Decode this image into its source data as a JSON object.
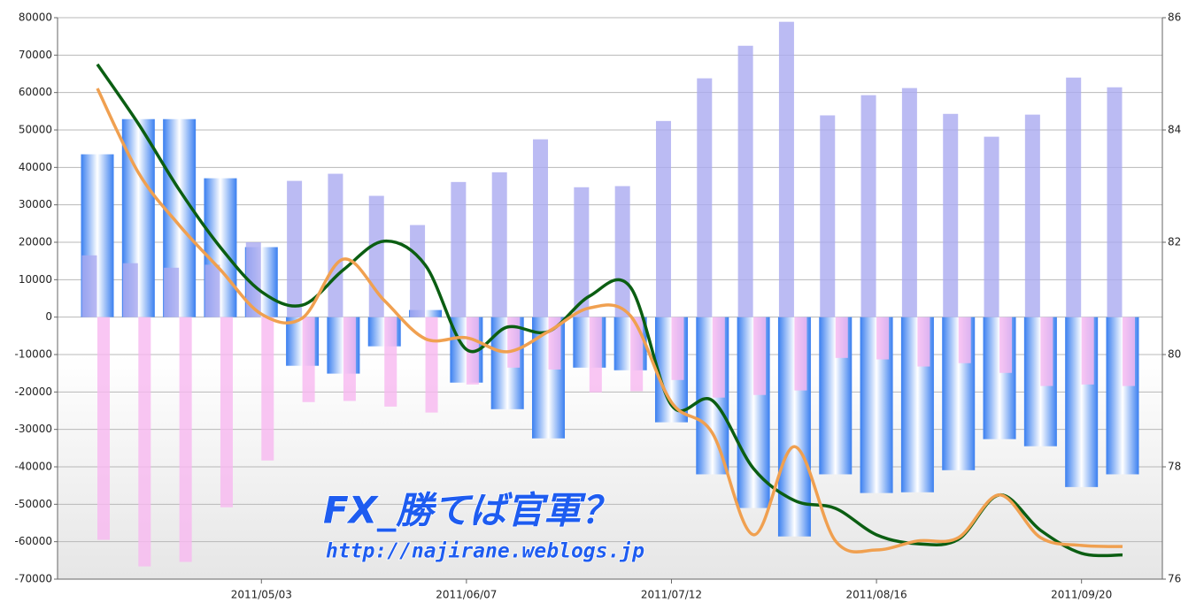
{
  "chart_data": {
    "type": "bar-line",
    "watermark": "FX_勝てば官軍？",
    "watermark_url": "http://najirane.weblogs.jp",
    "categories": [
      null,
      null,
      null,
      null,
      "2011/05/03",
      null,
      null,
      null,
      null,
      "2011/06/07",
      null,
      null,
      null,
      null,
      "2011/07/12",
      null,
      null,
      null,
      null,
      "2011/08/16",
      null,
      null,
      null,
      null,
      "2011/09/20",
      null
    ],
    "ylim": [
      -70000,
      80000
    ],
    "yticks": [
      -70000,
      -60000,
      -50000,
      -40000,
      -30000,
      -20000,
      -10000,
      0,
      10000,
      20000,
      30000,
      40000,
      50000,
      60000,
      70000,
      80000
    ],
    "y2lim": [
      76,
      86
    ],
    "y2ticks": [
      76,
      78,
      80,
      82,
      84,
      86
    ],
    "grid": true,
    "series": [
      {
        "kind": "bar",
        "color": "#3a7ff0",
        "values": [
          43500,
          52900,
          52900,
          37100,
          18700,
          -13000,
          -15100,
          -7800,
          1900,
          -17500,
          -24600,
          -32400,
          -13500,
          -14200,
          -28100,
          -42000,
          -51000,
          -58600,
          -42000,
          -47000,
          -46800,
          -40900,
          -32600,
          -34500,
          -45400,
          -42000
        ]
      },
      {
        "kind": "bar",
        "color": "#aaaaf0",
        "values": [
          16500,
          14400,
          13200,
          14000,
          20000,
          36400,
          38300,
          32400,
          24600,
          36100,
          38700,
          47500,
          34700,
          35000,
          52400,
          63800,
          72500,
          78900,
          53900,
          59300,
          61200,
          54300,
          48200,
          54100,
          64000,
          61400
        ]
      },
      {
        "kind": "bar",
        "color": "#f8b8f0",
        "values": [
          -59500,
          -66600,
          -65400,
          -50800,
          -38300,
          -22700,
          -22400,
          -23900,
          -25500,
          -18000,
          -13500,
          -14000,
          -20100,
          -19800,
          -16800,
          -21500,
          -20800,
          -19600,
          -10900,
          -11300,
          -13200,
          -12300,
          -14900,
          -18400,
          -18000,
          -18400
        ]
      },
      {
        "kind": "line",
        "axis": "y2",
        "color": "#0b5e12",
        "values": [
          85.17,
          84.11,
          82.93,
          81.91,
          81.12,
          80.88,
          81.51,
          82.02,
          81.59,
          80.09,
          80.49,
          80.41,
          81.04,
          81.2,
          79.1,
          79.18,
          77.97,
          77.4,
          77.26,
          76.79,
          76.63,
          76.71,
          77.5,
          76.87,
          76.46,
          76.43
        ]
      },
      {
        "kind": "line",
        "axis": "y2",
        "color": "#f0a050",
        "values": [
          84.74,
          83.24,
          82.3,
          81.51,
          80.72,
          80.65,
          81.7,
          80.96,
          80.28,
          80.3,
          80.05,
          80.41,
          80.83,
          80.69,
          79.15,
          78.6,
          76.79,
          78.36,
          76.68,
          76.52,
          76.68,
          76.74,
          77.5,
          76.74,
          76.6,
          76.58
        ]
      }
    ]
  }
}
